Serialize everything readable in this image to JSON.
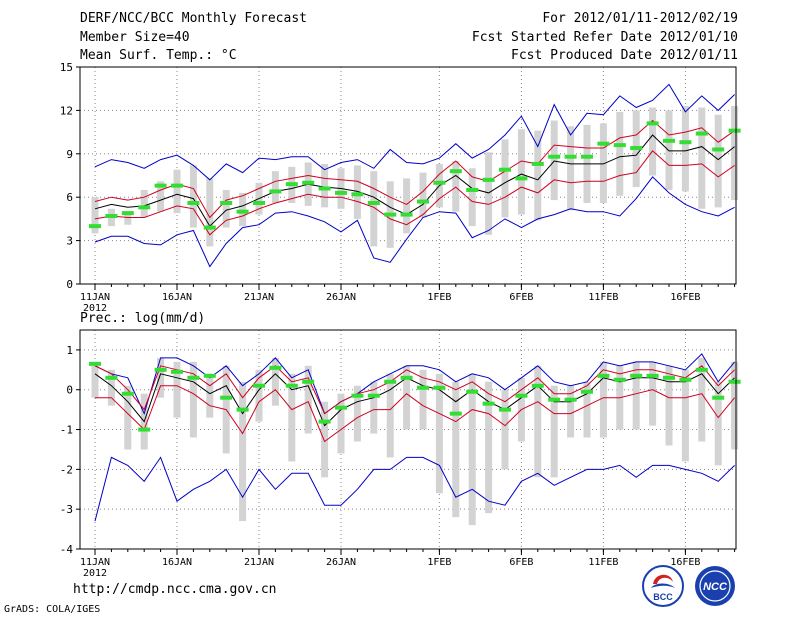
{
  "header": {
    "title": "DERF/NCC/BCC Monthly Forecast",
    "member": "Member Size=40",
    "variable": "Mean Surf. Temp.: °C",
    "period": "For 2012/01/11-2012/02/19",
    "start": "Fcst Started Refer Date 2012/01/10",
    "produced": "Fcst Produced Date 2012/01/11"
  },
  "footer": {
    "url": "http://cmdp.ncc.cma.gov.cn",
    "grads": "GrADS: COLA/IGES",
    "logo_bcc": "BCC",
    "logo_ncc": "NCC"
  },
  "colors": {
    "spread_bar": "#d3d3d3",
    "ensemble_mean": "#000000",
    "inner_bounds": "#d00020",
    "outer_bounds": "#0000c8",
    "observation_marker": "#33dd33"
  },
  "chart_data": [
    {
      "type": "line",
      "title": "Mean Surf. Temp.: °C",
      "x": [
        1,
        2,
        3,
        4,
        5,
        6,
        7,
        8,
        9,
        10,
        11,
        12,
        13,
        14,
        15,
        16,
        17,
        18,
        19,
        20,
        21,
        22,
        23,
        24,
        25,
        26,
        27,
        28,
        29,
        30,
        31,
        32,
        33,
        34,
        35,
        36,
        37,
        38,
        39,
        40
      ],
      "xticks": [
        "11JAN",
        "16JAN",
        "21JAN",
        "26JAN",
        "1FEB",
        "6FEB",
        "11FEB",
        "16FEB"
      ],
      "xtick_positions": [
        1,
        6,
        11,
        16,
        22,
        27,
        32,
        37
      ],
      "xyear": "2012",
      "ylim": [
        0,
        15
      ],
      "yticks": [
        0,
        3,
        6,
        9,
        12,
        15
      ],
      "series": [
        {
          "name": "ensemble mean",
          "values": [
            5.2,
            5.5,
            5.3,
            5.4,
            5.8,
            6.2,
            5.9,
            4.0,
            5.1,
            5.4,
            5.9,
            6.4,
            6.6,
            6.9,
            6.7,
            6.6,
            6.4,
            6.0,
            5.3,
            4.8,
            5.5,
            6.8,
            7.5,
            6.6,
            6.3,
            7.0,
            7.6,
            7.2,
            8.5,
            8.3,
            8.3,
            8.3,
            8.8,
            8.9,
            10.3,
            9.2,
            9.2,
            9.5,
            8.6,
            9.5
          ]
        },
        {
          "name": "upper inner",
          "values": [
            5.7,
            6.0,
            5.8,
            6.0,
            6.5,
            6.9,
            6.6,
            4.6,
            5.8,
            6.1,
            6.6,
            7.1,
            7.3,
            7.5,
            7.3,
            7.2,
            7.1,
            6.6,
            6.0,
            5.5,
            6.4,
            7.6,
            8.5,
            7.4,
            7.1,
            7.8,
            8.5,
            8.3,
            9.6,
            9.5,
            9.4,
            9.4,
            10.1,
            10.3,
            11.3,
            10.3,
            10.5,
            10.8,
            9.8,
            10.6
          ]
        },
        {
          "name": "lower inner",
          "values": [
            4.5,
            4.7,
            4.6,
            4.6,
            5.0,
            5.4,
            5.2,
            3.4,
            4.4,
            4.7,
            5.2,
            5.6,
            5.9,
            6.2,
            6.0,
            6.0,
            5.7,
            5.3,
            4.5,
            4.1,
            4.8,
            5.9,
            6.7,
            5.7,
            5.5,
            6.0,
            6.7,
            6.3,
            7.2,
            7.0,
            7.1,
            7.1,
            7.5,
            7.7,
            9.2,
            8.2,
            8.2,
            8.3,
            7.4,
            8.2
          ]
        },
        {
          "name": "upper outer",
          "values": [
            8.1,
            8.6,
            8.4,
            8.0,
            8.6,
            8.9,
            8.2,
            7.2,
            8.3,
            7.7,
            8.7,
            8.6,
            8.8,
            8.8,
            7.9,
            8.4,
            8.6,
            8.0,
            9.3,
            8.4,
            8.3,
            8.7,
            9.7,
            8.7,
            9.3,
            10.3,
            11.6,
            9.5,
            12.4,
            10.3,
            11.8,
            11.7,
            13.0,
            12.2,
            12.7,
            13.8,
            11.9,
            13.0,
            12.0,
            13.1
          ]
        },
        {
          "name": "lower outer",
          "values": [
            2.9,
            3.3,
            3.3,
            2.8,
            2.7,
            3.4,
            3.7,
            1.2,
            2.8,
            3.9,
            4.1,
            4.9,
            5.0,
            4.7,
            4.3,
            3.6,
            4.4,
            1.8,
            1.5,
            3.1,
            4.6,
            5.0,
            4.9,
            3.2,
            3.7,
            4.5,
            3.9,
            4.5,
            4.8,
            5.2,
            5.0,
            5.0,
            4.7,
            5.9,
            7.4,
            6.3,
            5.5,
            5.0,
            4.7,
            5.3
          ]
        },
        {
          "name": "spread top",
          "values": [
            6.0,
            5.2,
            5.0,
            6.5,
            7.1,
            7.9,
            8.2,
            7.3,
            6.5,
            6.3,
            7.0,
            7.8,
            8.1,
            8.4,
            8.3,
            8.0,
            8.2,
            7.8,
            7.1,
            7.3,
            7.7,
            8.3,
            8.5,
            8.0,
            9.1,
            10.0,
            10.7,
            10.6,
            11.3,
            10.9,
            11.0,
            11.1,
            11.9,
            12.0,
            12.2,
            12.0,
            12.3,
            12.2,
            11.7,
            12.3
          ]
        },
        {
          "name": "spread bottom",
          "values": [
            3.5,
            4.0,
            4.1,
            4.6,
            5.0,
            4.9,
            3.9,
            2.6,
            3.9,
            4.0,
            4.8,
            5.6,
            5.6,
            5.4,
            5.3,
            5.2,
            4.5,
            2.6,
            2.5,
            3.5,
            4.6,
            5.3,
            5.0,
            4.0,
            3.4,
            4.6,
            4.8,
            4.4,
            5.8,
            5.1,
            5.6,
            5.6,
            6.1,
            6.7,
            7.5,
            6.5,
            6.4,
            5.2,
            5.3,
            5.8
          ]
        },
        {
          "name": "observed",
          "values": [
            4.0,
            4.7,
            4.9,
            5.3,
            6.8,
            6.8,
            5.6,
            3.9,
            5.6,
            5.0,
            5.6,
            6.4,
            6.9,
            7.0,
            6.6,
            6.3,
            6.2,
            5.6,
            4.8,
            4.8,
            5.7,
            7.0,
            7.8,
            6.5,
            7.2,
            7.9,
            7.3,
            8.3,
            8.8,
            8.8,
            8.8,
            9.7,
            9.6,
            9.4,
            11.1,
            9.9,
            9.8,
            10.4,
            9.3,
            10.6
          ]
        }
      ]
    },
    {
      "type": "line",
      "title": "Prec.: log(mm/d)",
      "x": [
        1,
        2,
        3,
        4,
        5,
        6,
        7,
        8,
        9,
        10,
        11,
        12,
        13,
        14,
        15,
        16,
        17,
        18,
        19,
        20,
        21,
        22,
        23,
        24,
        25,
        26,
        27,
        28,
        29,
        30,
        31,
        32,
        33,
        34,
        35,
        36,
        37,
        38,
        39,
        40
      ],
      "xticks": [
        "11JAN",
        "16JAN",
        "21JAN",
        "26JAN",
        "1FEB",
        "6FEB",
        "11FEB",
        "16FEB"
      ],
      "xtick_positions": [
        1,
        6,
        11,
        16,
        22,
        27,
        32,
        37
      ],
      "xyear": "2012",
      "ylim": [
        -4,
        1.5
      ],
      "yticks": [
        -4,
        -3,
        -2,
        -1,
        0,
        1
      ],
      "series": [
        {
          "name": "ensemble mean",
          "values": [
            0.4,
            0.1,
            -0.3,
            -0.8,
            0.4,
            0.3,
            0.2,
            -0.1,
            0.1,
            -0.6,
            0.0,
            0.4,
            0.0,
            0.1,
            -0.9,
            -0.5,
            -0.3,
            -0.2,
            0.0,
            0.3,
            0.1,
            0.0,
            -0.3,
            0.0,
            -0.3,
            -0.5,
            -0.2,
            0.1,
            -0.3,
            -0.3,
            -0.1,
            0.3,
            0.2,
            0.3,
            0.3,
            0.2,
            0.2,
            0.4,
            -0.1,
            0.3
          ]
        },
        {
          "name": "upper inner",
          "values": [
            0.6,
            0.4,
            0.0,
            -0.5,
            0.6,
            0.5,
            0.4,
            0.1,
            0.4,
            -0.2,
            0.3,
            0.6,
            0.2,
            0.3,
            -0.6,
            -0.3,
            -0.1,
            0.0,
            0.2,
            0.5,
            0.3,
            0.2,
            0.0,
            0.2,
            -0.1,
            -0.3,
            0.0,
            0.3,
            -0.1,
            -0.1,
            0.1,
            0.5,
            0.4,
            0.5,
            0.5,
            0.4,
            0.3,
            0.6,
            0.1,
            0.5
          ]
        },
        {
          "name": "lower inner",
          "values": [
            -0.2,
            -0.2,
            -0.6,
            -1.0,
            0.1,
            0.1,
            -0.1,
            -0.4,
            -0.5,
            -1.1,
            -0.3,
            0.0,
            -0.5,
            -0.3,
            -1.3,
            -1.0,
            -0.7,
            -0.5,
            -0.5,
            -0.1,
            -0.4,
            -0.6,
            -0.8,
            -0.5,
            -0.6,
            -0.9,
            -0.5,
            -0.3,
            -0.6,
            -0.6,
            -0.4,
            -0.2,
            -0.2,
            -0.1,
            0.0,
            -0.2,
            -0.2,
            -0.1,
            -0.7,
            -0.2
          ]
        },
        {
          "name": "upper outer",
          "values": [
            0.6,
            0.4,
            0.3,
            -0.6,
            0.8,
            0.8,
            0.6,
            0.3,
            0.6,
            0.1,
            0.4,
            0.8,
            0.3,
            0.5,
            -0.6,
            -0.3,
            -0.1,
            0.2,
            0.4,
            0.6,
            0.6,
            0.5,
            0.2,
            0.4,
            0.3,
            0.0,
            0.3,
            0.6,
            0.2,
            0.1,
            0.2,
            0.7,
            0.6,
            0.7,
            0.7,
            0.6,
            0.5,
            0.9,
            0.2,
            0.7
          ]
        },
        {
          "name": "lower outer",
          "values": [
            -3.3,
            -1.7,
            -1.9,
            -2.3,
            -1.7,
            -2.8,
            -2.5,
            -2.3,
            -2.0,
            -2.7,
            -2.0,
            -2.5,
            -2.1,
            -2.1,
            -2.9,
            -2.9,
            -2.5,
            -2.0,
            -2.0,
            -1.7,
            -1.7,
            -1.9,
            -2.7,
            -2.5,
            -2.8,
            -2.9,
            -2.3,
            -2.1,
            -2.4,
            -2.2,
            -2.0,
            -2.0,
            -1.9,
            -2.2,
            -1.9,
            -1.9,
            -2.0,
            -2.1,
            -2.3,
            -1.9
          ]
        },
        {
          "name": "spread top",
          "values": [
            0.7,
            0.5,
            0.1,
            -0.1,
            0.8,
            0.7,
            0.7,
            0.4,
            0.6,
            0.2,
            0.5,
            0.8,
            0.4,
            0.6,
            -0.3,
            -0.1,
            0.1,
            0.2,
            0.4,
            0.6,
            0.5,
            0.4,
            0.2,
            0.4,
            0.2,
            0.0,
            0.3,
            0.6,
            0.1,
            0.1,
            0.2,
            0.7,
            0.6,
            0.7,
            0.7,
            0.6,
            0.5,
            0.8,
            0.2,
            0.7
          ]
        },
        {
          "name": "spread bottom",
          "values": [
            -0.2,
            -0.4,
            -1.5,
            -1.5,
            -0.2,
            -0.7,
            -1.2,
            -0.7,
            -1.6,
            -3.3,
            -0.8,
            -0.4,
            -1.8,
            -1.1,
            -2.2,
            -1.6,
            -1.3,
            -1.1,
            -1.7,
            -1.0,
            -1.0,
            -2.6,
            -3.2,
            -3.4,
            -3.1,
            -2.0,
            -1.3,
            -2.2,
            -2.2,
            -1.2,
            -1.2,
            -1.2,
            -1.0,
            -1.0,
            -0.9,
            -1.4,
            -1.8,
            -1.3,
            -1.9,
            -1.5
          ]
        },
        {
          "name": "observed",
          "values": [
            0.65,
            0.3,
            -0.1,
            -1.0,
            0.5,
            0.45,
            0.3,
            0.35,
            -0.2,
            -0.5,
            0.1,
            0.55,
            0.1,
            0.2,
            -0.8,
            -0.45,
            -0.15,
            -0.15,
            0.2,
            0.3,
            0.05,
            0.05,
            -0.6,
            -0.05,
            -0.35,
            -0.5,
            -0.15,
            0.1,
            -0.25,
            -0.25,
            -0.05,
            0.35,
            0.25,
            0.35,
            0.35,
            0.3,
            0.25,
            0.5,
            -0.2,
            0.2
          ]
        }
      ]
    }
  ]
}
